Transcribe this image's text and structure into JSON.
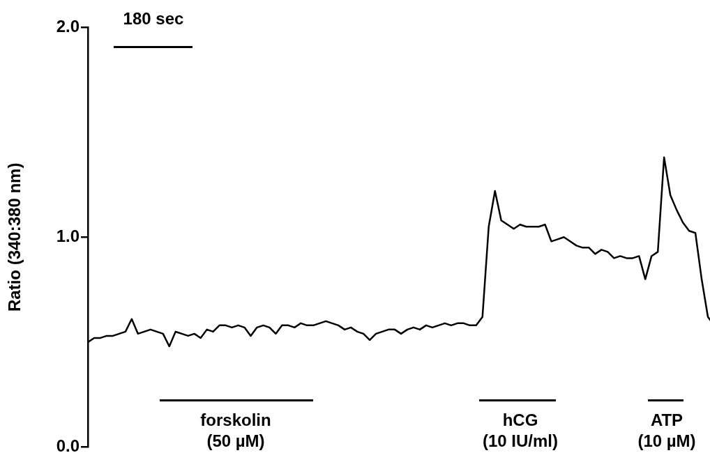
{
  "chart_data": {
    "type": "line",
    "ylabel": "Ratio (340:380 nm)",
    "color": "#000000",
    "categories": [
      null,
      null,
      null,
      null,
      null,
      null,
      null,
      null,
      null,
      null,
      null,
      null,
      null,
      null,
      null,
      null,
      null,
      null,
      null,
      null,
      null,
      null,
      null,
      null,
      null,
      null,
      null,
      null,
      null,
      null,
      null,
      null,
      null,
      null,
      null,
      null,
      null,
      null,
      null,
      null,
      null,
      null,
      null,
      null,
      null,
      null,
      null,
      null,
      null,
      null,
      null,
      null,
      null,
      null,
      null,
      null,
      null,
      null,
      null,
      null,
      null,
      null,
      null,
      null,
      null,
      null,
      null,
      null,
      null,
      null,
      null,
      null,
      null,
      null,
      null,
      null,
      null,
      null,
      null,
      null,
      null,
      null,
      null,
      null,
      null,
      null,
      null,
      null,
      null,
      null,
      null,
      null,
      null,
      null,
      null,
      null,
      null,
      null,
      null,
      null,
      null
    ],
    "values": [
      0.5,
      0.52,
      0.52,
      0.53,
      0.53,
      0.54,
      0.55,
      0.61,
      0.54,
      0.55,
      0.56,
      0.55,
      0.54,
      0.48,
      0.55,
      0.54,
      0.53,
      0.54,
      0.52,
      0.56,
      0.55,
      0.58,
      0.58,
      0.57,
      0.58,
      0.57,
      0.53,
      0.57,
      0.58,
      0.57,
      0.54,
      0.58,
      0.58,
      0.57,
      0.59,
      0.58,
      0.58,
      0.59,
      0.6,
      0.59,
      0.58,
      0.56,
      0.57,
      0.55,
      0.54,
      0.51,
      0.54,
      0.55,
      0.56,
      0.56,
      0.54,
      0.56,
      0.57,
      0.56,
      0.58,
      0.57,
      0.58,
      0.59,
      0.58,
      0.59,
      0.59,
      0.58,
      0.58,
      0.62,
      1.05,
      1.22,
      1.08,
      1.06,
      1.04,
      1.06,
      1.05,
      1.05,
      1.05,
      1.06,
      0.98,
      0.99,
      1.0,
      0.98,
      0.96,
      0.95,
      0.95,
      0.92,
      0.94,
      0.93,
      0.9,
      0.91,
      0.9,
      0.9,
      0.91,
      0.8,
      0.91,
      0.93,
      1.38,
      1.2,
      1.13,
      1.07,
      1.03,
      1.02,
      0.8,
      0.62,
      0.58
    ],
    "ylim": [
      0,
      2
    ],
    "yticks": [
      {
        "value": 0,
        "label": "0.0"
      },
      {
        "value": 1,
        "label": "1.0"
      },
      {
        "value": 2,
        "label": "2.0"
      }
    ],
    "annotations": [
      "180 sec",
      "forskolin\n(50 µM)",
      "hCG\n(10 IU/ml)",
      "ATP\n(10 µM)"
    ]
  }
}
